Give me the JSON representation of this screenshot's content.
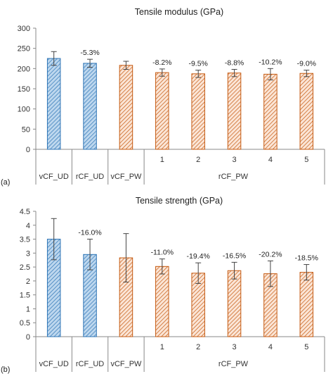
{
  "chart_data": [
    {
      "type": "bar",
      "panel_label": "(a)",
      "title": "Tensile modulus (GPa)",
      "group_labels": [
        "rCF_PW"
      ],
      "categories": [
        "vCF_UD",
        "rCF_UD",
        "vCF_PW",
        "1",
        "2",
        "3",
        "4",
        "5"
      ],
      "values": [
        225,
        213,
        208,
        190,
        187,
        189,
        186,
        188
      ],
      "errors": [
        17,
        10,
        10,
        9,
        9,
        9,
        14,
        8
      ],
      "data_labels": [
        "",
        "-5.3%",
        "",
        "-8.2%",
        "-9.5%",
        "-8.8%",
        "-10.2%",
        "-9.0%"
      ],
      "ylim": [
        0,
        300
      ],
      "yticks": [
        "0",
        "50",
        "100",
        "150",
        "200",
        "250",
        "300"
      ],
      "grid": false
    },
    {
      "type": "bar",
      "panel_label": "(b)",
      "title": "Tensile strength (GPa)",
      "group_labels": [
        "rCF_PW"
      ],
      "categories": [
        "vCF_UD",
        "rCF_UD",
        "vCF_PW",
        "1",
        "2",
        "3",
        "4",
        "5"
      ],
      "values": [
        3.5,
        2.95,
        2.83,
        2.52,
        2.28,
        2.37,
        2.26,
        2.31
      ],
      "errors": [
        0.74,
        0.55,
        0.87,
        0.27,
        0.37,
        0.3,
        0.46,
        0.28
      ],
      "data_labels": [
        "",
        "-16.0%",
        "",
        "-11.0%",
        "-19.4%",
        "-16.5%",
        "-20.2%",
        "-18.5%"
      ],
      "ylim": [
        0,
        4.5
      ],
      "yticks": [
        "0",
        "0.5",
        "1",
        "1.5",
        "2",
        "2.5",
        "3",
        "3.5",
        "4",
        "4.5"
      ],
      "grid": false
    }
  ],
  "colors": {
    "blue_fill": "#bdd7ee",
    "blue_stroke": "#2e75b6",
    "orange_fill": "#fbe5d6",
    "orange_stroke": "#c55a11",
    "axis": "#888888",
    "error": "#444444"
  }
}
